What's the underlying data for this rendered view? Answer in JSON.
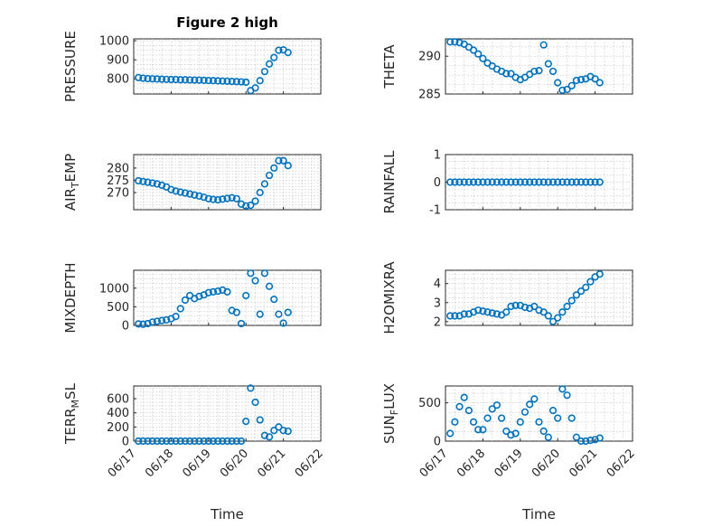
{
  "colors": {
    "marker": "#0072BD",
    "axis": "#262626",
    "grid": "#c8c8c8",
    "background": "#ffffff"
  },
  "chart_data": [
    {
      "type": "scatter",
      "marker": "circle",
      "grid": true,
      "title": "Figure 2 high",
      "ylabel": "PRESSURE",
      "xlabel": "",
      "xlim": [
        "06/17",
        "06/22"
      ],
      "ylim": [
        720,
        1010
      ],
      "yticks": [
        800,
        900,
        1000
      ],
      "xticks": [],
      "x": [
        "06/17 03:00",
        "06/17 06:00",
        "06/17 09:00",
        "06/17 12:00",
        "06/17 15:00",
        "06/17 18:00",
        "06/17 21:00",
        "06/18 00:00",
        "06/18 03:00",
        "06/18 06:00",
        "06/18 09:00",
        "06/18 12:00",
        "06/18 15:00",
        "06/18 18:00",
        "06/18 21:00",
        "06/19 00:00",
        "06/19 03:00",
        "06/19 06:00",
        "06/19 09:00",
        "06/19 12:00",
        "06/19 15:00",
        "06/19 18:00",
        "06/19 21:00",
        "06/20 00:00",
        "06/20 03:00",
        "06/20 06:00",
        "06/20 09:00",
        "06/20 12:00",
        "06/20 15:00",
        "06/20 18:00",
        "06/20 21:00",
        "06/21 00:00",
        "06/21 03:00"
      ],
      "y": [
        806,
        803,
        801,
        800,
        799,
        798,
        797,
        796,
        796,
        795,
        795,
        794,
        793,
        793,
        792,
        791,
        790,
        789,
        788,
        787,
        786,
        785,
        784,
        782,
        738,
        752,
        790,
        838,
        878,
        912,
        950,
        952,
        938
      ]
    },
    {
      "type": "scatter",
      "marker": "circle",
      "grid": true,
      "title": "",
      "ylabel": "THETA",
      "xlabel": "",
      "xlim": [
        "06/17",
        "06/22"
      ],
      "ylim": [
        285,
        292.3
      ],
      "yticks": [
        285,
        290
      ],
      "xticks": [],
      "x": [
        "06/17 03:00",
        "06/17 06:00",
        "06/17 09:00",
        "06/17 12:00",
        "06/17 15:00",
        "06/17 18:00",
        "06/17 21:00",
        "06/18 00:00",
        "06/18 03:00",
        "06/18 06:00",
        "06/18 09:00",
        "06/18 12:00",
        "06/18 15:00",
        "06/18 18:00",
        "06/18 21:00",
        "06/19 00:00",
        "06/19 03:00",
        "06/19 06:00",
        "06/19 09:00",
        "06/19 12:00",
        "06/19 15:00",
        "06/19 18:00",
        "06/19 21:00",
        "06/20 00:00",
        "06/20 03:00",
        "06/20 06:00",
        "06/20 09:00",
        "06/20 12:00",
        "06/20 15:00",
        "06/20 18:00",
        "06/20 21:00",
        "06/21 00:00",
        "06/21 03:00"
      ],
      "y": [
        291.9,
        291.9,
        291.8,
        291.6,
        291.2,
        290.8,
        290.3,
        289.7,
        289.1,
        288.7,
        288.3,
        288.0,
        287.7,
        287.7,
        287.2,
        286.9,
        287.2,
        287.6,
        288.0,
        288.1,
        291.5,
        289.0,
        288.0,
        286.5,
        285.5,
        285.6,
        286.1,
        286.8,
        286.9,
        287.0,
        287.3,
        287.0,
        286.5
      ]
    },
    {
      "type": "scatter",
      "marker": "circle",
      "grid": true,
      "title": "",
      "ylabel": "AIR_TEMP",
      "xlabel": "",
      "xlim": [
        "06/17",
        "06/22"
      ],
      "ylim": [
        263,
        285.5
      ],
      "yticks": [
        270,
        275,
        280
      ],
      "xticks": [],
      "x": [
        "06/17 03:00",
        "06/17 06:00",
        "06/17 09:00",
        "06/17 12:00",
        "06/17 15:00",
        "06/17 18:00",
        "06/17 21:00",
        "06/18 00:00",
        "06/18 03:00",
        "06/18 06:00",
        "06/18 09:00",
        "06/18 12:00",
        "06/18 15:00",
        "06/18 18:00",
        "06/18 21:00",
        "06/19 00:00",
        "06/19 03:00",
        "06/19 06:00",
        "06/19 09:00",
        "06/19 12:00",
        "06/19 15:00",
        "06/19 18:00",
        "06/19 21:00",
        "06/20 00:00",
        "06/20 03:00",
        "06/20 06:00",
        "06/20 09:00",
        "06/20 12:00",
        "06/20 15:00",
        "06/20 18:00",
        "06/20 21:00",
        "06/21 00:00",
        "06/21 03:00"
      ],
      "y": [
        274.8,
        274.5,
        274.2,
        273.9,
        273.5,
        273.0,
        272.3,
        271.2,
        270.6,
        270.2,
        269.8,
        269.4,
        269.0,
        268.6,
        268.1,
        267.5,
        267.2,
        267.0,
        267.3,
        267.6,
        267.9,
        267.5,
        265.3,
        264.5,
        264.8,
        266.5,
        270.0,
        273.5,
        277.0,
        280.0,
        283.0,
        283.0,
        281.0
      ]
    },
    {
      "type": "scatter",
      "marker": "circle",
      "grid": true,
      "title": "",
      "ylabel": "RAINFALL",
      "xlabel": "",
      "xlim": [
        "06/17",
        "06/22"
      ],
      "ylim": [
        -1,
        1
      ],
      "yticks": [
        -1,
        0,
        1
      ],
      "xticks": [],
      "x": [
        "06/17 03:00",
        "06/17 06:00",
        "06/17 09:00",
        "06/17 12:00",
        "06/17 15:00",
        "06/17 18:00",
        "06/17 21:00",
        "06/18 00:00",
        "06/18 03:00",
        "06/18 06:00",
        "06/18 09:00",
        "06/18 12:00",
        "06/18 15:00",
        "06/18 18:00",
        "06/18 21:00",
        "06/19 00:00",
        "06/19 03:00",
        "06/19 06:00",
        "06/19 09:00",
        "06/19 12:00",
        "06/19 15:00",
        "06/19 18:00",
        "06/19 21:00",
        "06/20 00:00",
        "06/20 03:00",
        "06/20 06:00",
        "06/20 09:00",
        "06/20 12:00",
        "06/20 15:00",
        "06/20 18:00",
        "06/20 21:00",
        "06/21 00:00",
        "06/21 03:00"
      ],
      "y": [
        0,
        0,
        0,
        0,
        0,
        0,
        0,
        0,
        0,
        0,
        0,
        0,
        0,
        0,
        0,
        0,
        0,
        0,
        0,
        0,
        0,
        0,
        0,
        0,
        0,
        0,
        0,
        0,
        0,
        0,
        0,
        0,
        0
      ]
    },
    {
      "type": "scatter",
      "marker": "circle",
      "grid": true,
      "title": "",
      "ylabel": "MIXDEPTH",
      "xlabel": "",
      "xlim": [
        "06/17",
        "06/22"
      ],
      "ylim": [
        0,
        1480
      ],
      "yticks": [
        0,
        500,
        1000
      ],
      "xticks": [],
      "x": [
        "06/17 03:00",
        "06/17 06:00",
        "06/17 09:00",
        "06/17 12:00",
        "06/17 15:00",
        "06/17 18:00",
        "06/17 21:00",
        "06/18 00:00",
        "06/18 03:00",
        "06/18 06:00",
        "06/18 09:00",
        "06/18 12:00",
        "06/18 15:00",
        "06/18 18:00",
        "06/18 21:00",
        "06/19 00:00",
        "06/19 03:00",
        "06/19 06:00",
        "06/19 09:00",
        "06/19 12:00",
        "06/19 15:00",
        "06/19 18:00",
        "06/19 21:00",
        "06/20 00:00",
        "06/20 03:00",
        "06/20 06:00",
        "06/20 09:00",
        "06/20 12:00",
        "06/20 15:00",
        "06/20 18:00",
        "06/20 21:00",
        "06/21 00:00",
        "06/21 03:00"
      ],
      "y": [
        40,
        30,
        50,
        90,
        110,
        130,
        150,
        180,
        240,
        450,
        680,
        800,
        720,
        780,
        820,
        880,
        900,
        920,
        950,
        900,
        400,
        350,
        50,
        800,
        1400,
        1200,
        300,
        1400,
        1050,
        700,
        300,
        60,
        350
      ]
    },
    {
      "type": "scatter",
      "marker": "circle",
      "grid": true,
      "title": "",
      "ylabel": "H2OMIXRA",
      "xlabel": "",
      "xlim": [
        "06/17",
        "06/22"
      ],
      "ylim": [
        1.8,
        4.7
      ],
      "yticks": [
        2,
        3,
        4
      ],
      "xticks": [],
      "x": [
        "06/17 03:00",
        "06/17 06:00",
        "06/17 09:00",
        "06/17 12:00",
        "06/17 15:00",
        "06/17 18:00",
        "06/17 21:00",
        "06/18 00:00",
        "06/18 03:00",
        "06/18 06:00",
        "06/18 09:00",
        "06/18 12:00",
        "06/18 15:00",
        "06/18 18:00",
        "06/18 21:00",
        "06/19 00:00",
        "06/19 03:00",
        "06/19 06:00",
        "06/19 09:00",
        "06/19 12:00",
        "06/19 15:00",
        "06/19 18:00",
        "06/19 21:00",
        "06/20 00:00",
        "06/20 03:00",
        "06/20 06:00",
        "06/20 09:00",
        "06/20 12:00",
        "06/20 15:00",
        "06/20 18:00",
        "06/20 21:00",
        "06/21 00:00",
        "06/21 03:00"
      ],
      "y": [
        2.3,
        2.3,
        2.3,
        2.4,
        2.4,
        2.5,
        2.6,
        2.55,
        2.5,
        2.45,
        2.4,
        2.35,
        2.5,
        2.8,
        2.85,
        2.85,
        2.75,
        2.7,
        2.8,
        2.6,
        2.5,
        2.3,
        2.0,
        2.2,
        2.5,
        2.8,
        3.1,
        3.4,
        3.6,
        3.8,
        4.1,
        4.35,
        4.5
      ]
    },
    {
      "type": "scatter",
      "marker": "circle",
      "grid": true,
      "title": "",
      "ylabel": "TERR_MSL",
      "xlabel": "Time",
      "xlim": [
        "06/17",
        "06/22"
      ],
      "ylim": [
        0,
        780
      ],
      "yticks": [
        0,
        200,
        400,
        600
      ],
      "xticks": [
        "06/17",
        "06/18",
        "06/19",
        "06/20",
        "06/21",
        "06/22"
      ],
      "x": [
        "06/17 03:00",
        "06/17 06:00",
        "06/17 09:00",
        "06/17 12:00",
        "06/17 15:00",
        "06/17 18:00",
        "06/17 21:00",
        "06/18 00:00",
        "06/18 03:00",
        "06/18 06:00",
        "06/18 09:00",
        "06/18 12:00",
        "06/18 15:00",
        "06/18 18:00",
        "06/18 21:00",
        "06/19 00:00",
        "06/19 03:00",
        "06/19 06:00",
        "06/19 09:00",
        "06/19 12:00",
        "06/19 15:00",
        "06/19 18:00",
        "06/19 21:00",
        "06/20 00:00",
        "06/20 03:00",
        "06/20 06:00",
        "06/20 09:00",
        "06/20 12:00",
        "06/20 15:00",
        "06/20 18:00",
        "06/20 21:00",
        "06/21 00:00",
        "06/21 03:00"
      ],
      "y": [
        0,
        0,
        0,
        0,
        0,
        0,
        0,
        0,
        0,
        0,
        0,
        0,
        0,
        0,
        0,
        0,
        0,
        0,
        0,
        0,
        0,
        0,
        0,
        280,
        750,
        550,
        300,
        80,
        60,
        150,
        200,
        150,
        140
      ]
    },
    {
      "type": "scatter",
      "marker": "circle",
      "grid": true,
      "title": "",
      "ylabel": "SUN_FLUX",
      "xlabel": "Time",
      "xlim": [
        "06/17",
        "06/22"
      ],
      "ylim": [
        0,
        720
      ],
      "yticks": [
        0,
        500
      ],
      "xticks": [
        "06/17",
        "06/18",
        "06/19",
        "06/20",
        "06/21",
        "06/22"
      ],
      "x": [
        "06/17 03:00",
        "06/17 06:00",
        "06/17 09:00",
        "06/17 12:00",
        "06/17 15:00",
        "06/17 18:00",
        "06/17 21:00",
        "06/18 00:00",
        "06/18 03:00",
        "06/18 06:00",
        "06/18 09:00",
        "06/18 12:00",
        "06/18 15:00",
        "06/18 18:00",
        "06/18 21:00",
        "06/19 00:00",
        "06/19 03:00",
        "06/19 06:00",
        "06/19 09:00",
        "06/19 12:00",
        "06/19 15:00",
        "06/19 18:00",
        "06/19 21:00",
        "06/20 00:00",
        "06/20 03:00",
        "06/20 06:00",
        "06/20 09:00",
        "06/20 12:00",
        "06/20 15:00",
        "06/20 18:00",
        "06/20 21:00",
        "06/21 00:00",
        "06/21 03:00"
      ],
      "y": [
        100,
        250,
        450,
        570,
        400,
        250,
        150,
        150,
        300,
        420,
        470,
        300,
        130,
        80,
        100,
        250,
        380,
        480,
        550,
        250,
        130,
        50,
        400,
        300,
        680,
        600,
        300,
        50,
        0,
        0,
        10,
        20,
        40
      ]
    }
  ]
}
